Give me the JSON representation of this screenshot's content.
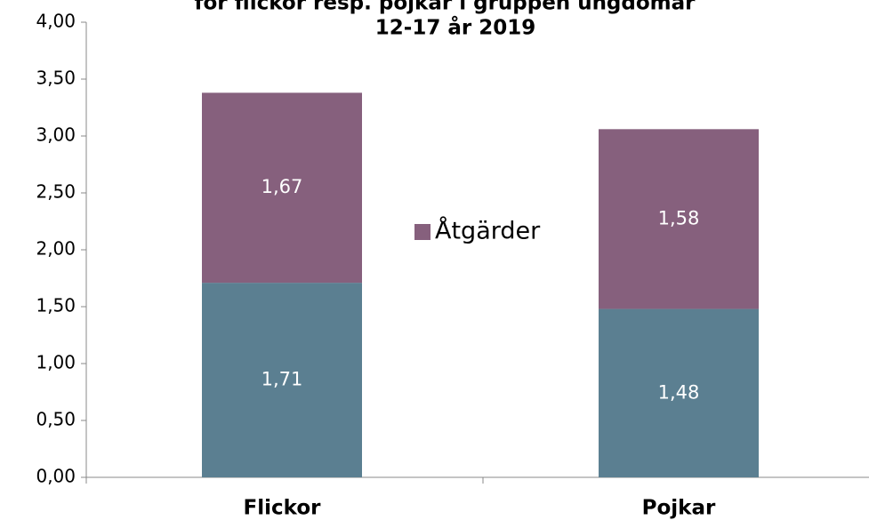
{
  "chart_data": {
    "type": "stacked_bar",
    "title": [
      "för flickor resp. pojkar i gruppen ungdomar",
      "12-17 år 2019"
    ],
    "categories": [
      "Flickor",
      "Pojkar"
    ],
    "series": [
      {
        "name": null,
        "color": "#5b7f91",
        "values": [
          1.71,
          1.48
        ],
        "value_labels": [
          "1,71",
          "1,48"
        ]
      },
      {
        "name": "Åtgärder",
        "color": "#86607d",
        "values": [
          1.67,
          1.58
        ],
        "value_labels": [
          "1,67",
          "1,58"
        ]
      }
    ],
    "ylim": [
      0,
      4
    ],
    "yticks": [
      {
        "value": 0,
        "label": "0,00"
      },
      {
        "value": 0.5,
        "label": "0,50"
      },
      {
        "value": 1,
        "label": "1,00"
      },
      {
        "value": 1.5,
        "label": "1,50"
      },
      {
        "value": 2,
        "label": "2,00"
      },
      {
        "value": 2.5,
        "label": "2,50"
      },
      {
        "value": 3,
        "label": "3,00"
      },
      {
        "value": 3.5,
        "label": "3,50"
      },
      {
        "value": 4,
        "label": "4,00"
      }
    ]
  }
}
